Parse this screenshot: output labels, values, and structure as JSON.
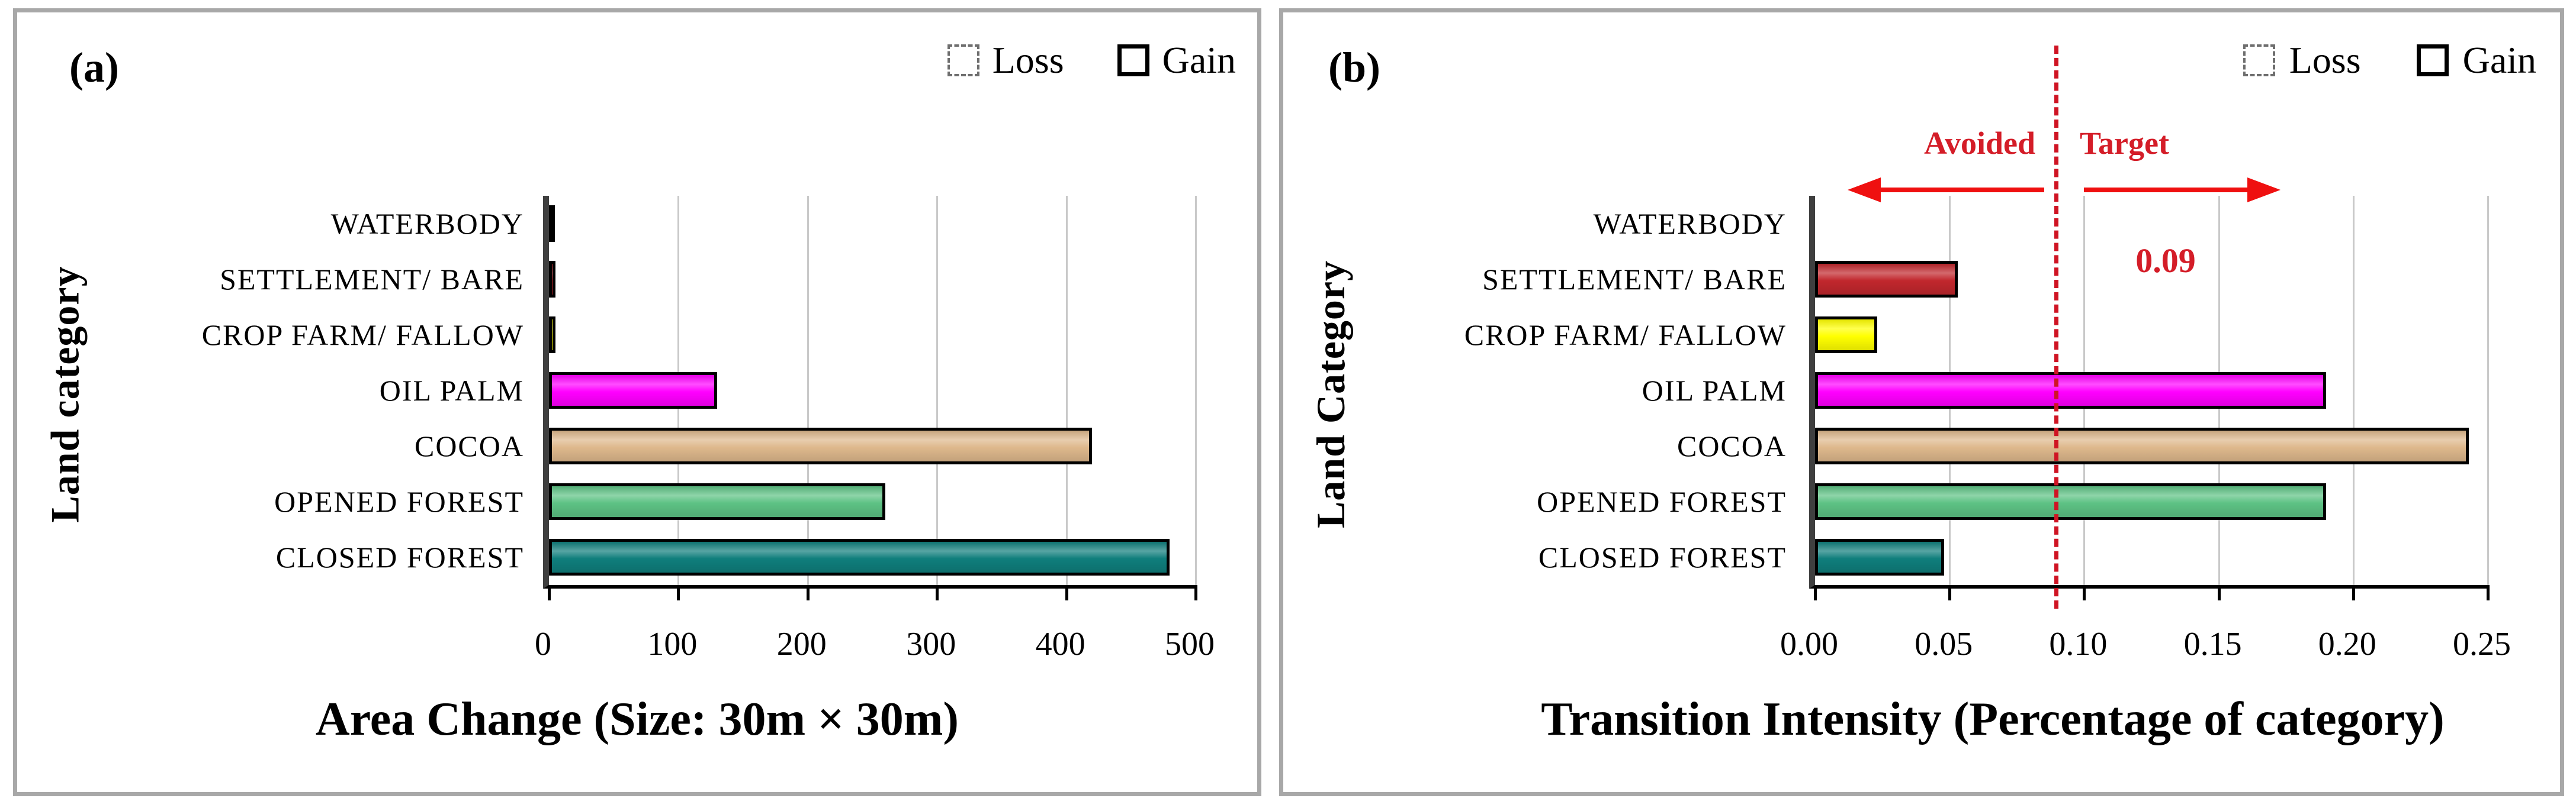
{
  "legend": {
    "loss": "Loss",
    "gain": "Gain"
  },
  "colors": {
    "category_fills": [
      "#ffffff",
      "#c1272d",
      "#ffff00",
      "#ff00ff",
      "#deb88c",
      "#5dc284",
      "#0f7e7c"
    ],
    "annotation_red": "#d41d28",
    "arrow_red": "#ef1010",
    "refline_red": "#cf1423",
    "gridline_gray": "#c9c9c9",
    "panel_border_gray": "#a8a8a8"
  },
  "chart_data": [
    {
      "type": "bar",
      "orientation": "horizontal",
      "tag": "(a)",
      "categories": [
        "WATERBODY",
        "SETTLEMENT/ BARE",
        "CROP FARM/ FALLOW",
        "OIL PALM",
        "COCOA",
        "OPENED FOREST",
        "CLOSED FOREST"
      ],
      "series": [
        {
          "name": "Gain",
          "values": [
            2,
            5,
            5,
            130,
            420,
            260,
            480
          ]
        }
      ],
      "xlabel": "Area Change (Size: 30m × 30m)",
      "ylabel": "Land category",
      "xlim": [
        0,
        500
      ],
      "xtick_values": [
        0,
        100,
        200,
        300,
        400,
        500
      ],
      "xtick_labels": [
        "0",
        "100",
        "200",
        "300",
        "400",
        "500"
      ],
      "grid": "vertical",
      "legend_position": "top-right"
    },
    {
      "type": "bar",
      "orientation": "horizontal",
      "tag": "(b)",
      "categories": [
        "WATERBODY",
        "SETTLEMENT/ BARE",
        "CROP FARM/ FALLOW",
        "OIL PALM",
        "COCOA",
        "OPENED FOREST",
        "CLOSED FOREST"
      ],
      "series": [
        {
          "name": "Gain",
          "values": [
            0,
            0.053,
            0.023,
            0.19,
            0.243,
            0.19,
            0.048
          ]
        }
      ],
      "xlabel": "Transition Intensity (Percentage of category)",
      "ylabel": "Land Category",
      "xlim": [
        0,
        0.25
      ],
      "xtick_values": [
        0,
        0.05,
        0.1,
        0.15,
        0.2,
        0.25
      ],
      "xtick_labels": [
        "0.00",
        "0.05",
        "0.10",
        "0.15",
        "0.20",
        "0.25"
      ],
      "grid": "vertical",
      "legend_position": "top-right",
      "annotations": {
        "avoided_label": "Avoided",
        "target_label": "Target",
        "reference_value": 0.09,
        "reference_value_label": "0.09"
      }
    }
  ]
}
